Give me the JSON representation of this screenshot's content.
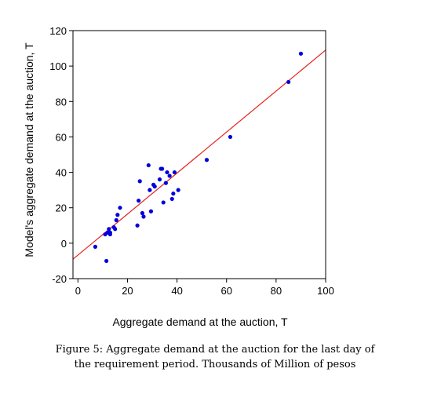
{
  "chart_data": {
    "type": "scatter",
    "xlabel": "Aggregate demand at the auction, T",
    "ylabel": "Model's aggregate demand at the auction, T",
    "xlim": [
      -2,
      100
    ],
    "ylim": [
      -20,
      120
    ],
    "xticks": [
      0,
      20,
      40,
      60,
      80,
      100
    ],
    "yticks": [
      -20,
      0,
      20,
      40,
      60,
      80,
      100,
      120
    ],
    "grid": false,
    "series": [
      {
        "kind": "points",
        "color": "#0000dd",
        "points": [
          [
            7,
            -2
          ],
          [
            11.5,
            -10
          ],
          [
            11,
            5
          ],
          [
            12,
            6
          ],
          [
            12.5,
            8
          ],
          [
            13,
            5
          ],
          [
            13,
            6
          ],
          [
            14.5,
            9
          ],
          [
            15,
            8
          ],
          [
            15.5,
            13
          ],
          [
            16,
            16
          ],
          [
            17,
            20
          ],
          [
            24,
            10
          ],
          [
            24.5,
            24
          ],
          [
            25,
            35
          ],
          [
            26,
            17
          ],
          [
            26.5,
            15
          ],
          [
            28.5,
            44
          ],
          [
            29,
            30
          ],
          [
            29.5,
            18
          ],
          [
            30.5,
            33
          ],
          [
            31,
            32
          ],
          [
            33,
            36
          ],
          [
            33.5,
            42
          ],
          [
            34,
            42
          ],
          [
            34.5,
            23
          ],
          [
            35.5,
            34
          ],
          [
            36,
            40
          ],
          [
            37,
            38
          ],
          [
            38,
            25
          ],
          [
            38.5,
            28
          ],
          [
            39,
            40
          ],
          [
            40.5,
            30
          ],
          [
            52,
            47
          ],
          [
            61.5,
            60
          ],
          [
            85,
            91
          ],
          [
            90,
            107
          ]
        ]
      },
      {
        "kind": "fit-line",
        "color": "#e8201a",
        "x": [
          -2,
          100
        ],
        "y": [
          -9,
          109
        ]
      }
    ]
  },
  "caption": {
    "line1": "Figure 5: Aggregate demand at the auction for the last day of",
    "line2": "the requirement period. Thousands of Million of pesos"
  }
}
